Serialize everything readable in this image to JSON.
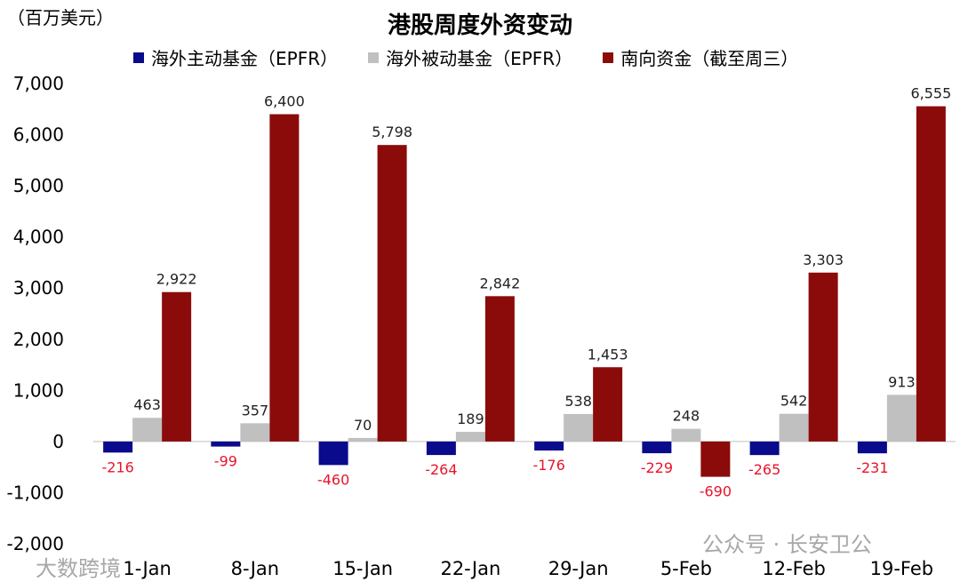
{
  "unit_label": "（百万美元）",
  "watermarks": {
    "left": "大数跨境",
    "right": "公众号 · 长安卫公"
  },
  "chart_data": {
    "type": "bar",
    "title": "港股周度外资变动",
    "xlabel": "",
    "ylabel": "",
    "ylim": [
      -2000,
      7000
    ],
    "yticks": [
      -2000,
      -1000,
      0,
      1000,
      2000,
      3000,
      4000,
      5000,
      6000,
      7000
    ],
    "ytick_labels": [
      "-2,000",
      "-1,000",
      "0",
      "1,000",
      "2,000",
      "3,000",
      "4,000",
      "5,000",
      "6,000",
      "7,000"
    ],
    "categories": [
      "1-Jan",
      "8-Jan",
      "15-Jan",
      "22-Jan",
      "29-Jan",
      "5-Feb",
      "12-Feb",
      "19-Feb"
    ],
    "legend_position": "top",
    "grid": false,
    "series": [
      {
        "name": "海外主动基金（EPFR）",
        "color": "#0a0a8c",
        "values": [
          -216,
          -99,
          -460,
          -264,
          -176,
          -229,
          -265,
          -231
        ],
        "labels": [
          "-216",
          "-99",
          "-460",
          "-264",
          "-176",
          "-229",
          "-265",
          "-231"
        ]
      },
      {
        "name": "海外被动基金（EPFR）",
        "color": "#c0c0c0",
        "values": [
          463,
          357,
          70,
          189,
          538,
          248,
          542,
          913
        ],
        "labels": [
          "463",
          "357",
          "70",
          "189",
          "538",
          "248",
          "542",
          "913"
        ]
      },
      {
        "name": "南向资金（截至周三）",
        "color": "#8b0b0b",
        "values": [
          2922,
          6400,
          5798,
          2842,
          1453,
          -690,
          3303,
          6555
        ],
        "labels": [
          "2,922",
          "6,400",
          "5,798",
          "2,842",
          "1,453",
          "-690",
          "3,303",
          "6,555"
        ]
      }
    ],
    "negative_label_color": "#e8132b",
    "positive_label_color": "#222222"
  }
}
